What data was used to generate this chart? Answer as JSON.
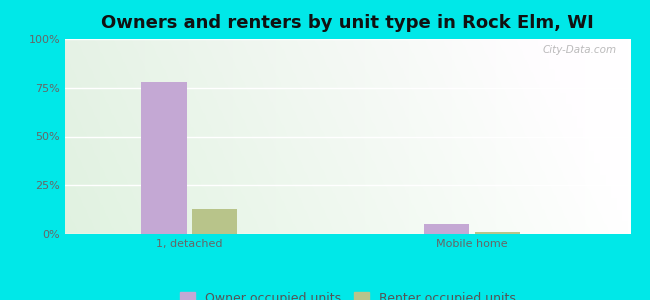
{
  "title": "Owners and renters by unit type in Rock Elm, WI",
  "categories": [
    "1, detached",
    "Mobile home"
  ],
  "owner_values": [
    78,
    5
  ],
  "renter_values": [
    13,
    1
  ],
  "owner_color": "#c4a8d4",
  "renter_color": "#b8c48a",
  "outer_background": "#00e8e8",
  "yticks": [
    0,
    25,
    50,
    75,
    100
  ],
  "ytick_labels": [
    "0%",
    "25%",
    "50%",
    "75%",
    "100%"
  ],
  "ylim": [
    0,
    100
  ],
  "bar_width": 0.08,
  "group_positions": [
    0.22,
    0.72
  ],
  "xlim": [
    0.0,
    1.0
  ],
  "legend_owner": "Owner occupied units",
  "legend_renter": "Renter occupied units",
  "watermark": "City-Data.com",
  "title_fontsize": 13,
  "axis_label_fontsize": 8,
  "legend_fontsize": 9
}
